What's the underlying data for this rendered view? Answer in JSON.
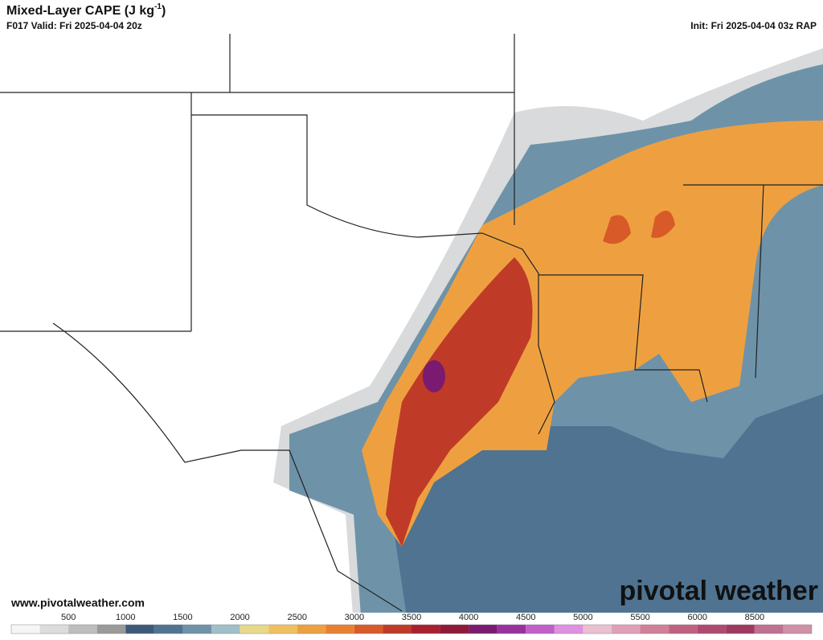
{
  "header": {
    "title": "Mixed-Layer CAPE (J kg",
    "title_sup": "-1",
    "title_end": ")",
    "valid": "F017 Valid: Fri 2025-04-04 20z",
    "init": "Init: Fri 2025-04-04 03z RAP"
  },
  "footer": {
    "website": "www.pivotalweather.com",
    "logo": "pivotal weather"
  },
  "colorbar": {
    "ticks": [
      500,
      1000,
      1500,
      2000,
      2500,
      3000,
      3500,
      4000,
      4500,
      5000,
      5500,
      6000,
      8500
    ],
    "colors": [
      "#f5f5f5",
      "#dcdcdc",
      "#bdbdbd",
      "#9a9a9a",
      "#3c5a78",
      "#4f7391",
      "#6e93a8",
      "#9fc0c8",
      "#e8d98a",
      "#f0c060",
      "#eea040",
      "#e88030",
      "#d85a28",
      "#c03a28",
      "#a82030",
      "#901838",
      "#7a1a70",
      "#9a30a0",
      "#c060c8",
      "#e090e0",
      "#eac0d0",
      "#e0a0b8",
      "#d08098",
      "#c06080",
      "#b04870",
      "#a03860",
      "#c07090",
      "#d090a8"
    ]
  }
}
